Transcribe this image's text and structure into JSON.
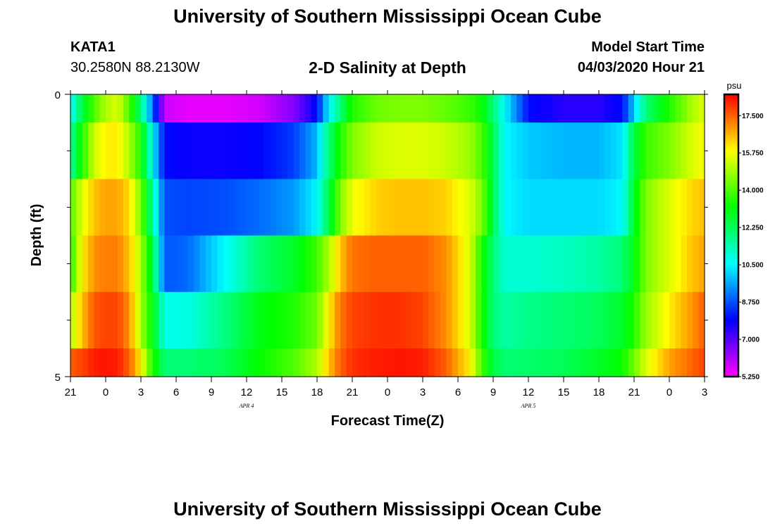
{
  "header": {
    "title": "University of Southern Mississippi Ocean Cube",
    "station_id": "KATA1",
    "station_coords": "30.2580N 88.2130W",
    "plot_title": "2-D Salinity at Depth",
    "model_start_label": "Model Start Time",
    "model_start_value": "04/03/2020 Hour 21"
  },
  "footer": {
    "title": "University of Southern Mississippi Ocean Cube"
  },
  "chart_data": {
    "type": "heatmap",
    "title": "2-D Salinity at Depth",
    "xlabel": "Forecast Time(Z)",
    "ylabel": "Depth (ft)",
    "x_tick_labels": [
      "21",
      "0",
      "3",
      "6",
      "9",
      "12",
      "15",
      "18",
      "21",
      "0",
      "3",
      "6",
      "9",
      "12",
      "15",
      "18",
      "21",
      "0",
      "3"
    ],
    "date_labels": [
      {
        "text": "APR 4",
        "at_hour": 15
      },
      {
        "text": "APR 5",
        "at_hour": 39
      }
    ],
    "y_tick_labels": [
      "0",
      "5"
    ],
    "ylim": [
      0,
      5
    ],
    "x_range_hours": [
      0,
      54
    ],
    "colorbar": {
      "unit": "psu",
      "range": [
        5.25,
        18.5
      ],
      "tick_labels": [
        "17.500",
        "15.750",
        "14.000",
        "12.250",
        "10.500",
        "8.750",
        "7.000",
        "5.250"
      ],
      "tick_values": [
        17.5,
        15.75,
        14.0,
        12.25,
        10.5,
        8.75,
        7.0,
        5.25
      ]
    },
    "depth_levels": [
      {
        "depth_range": [
          0.0,
          0.5
        ],
        "hours": [
          0,
          1,
          2,
          3,
          4,
          5,
          6,
          7,
          8,
          10,
          13,
          16,
          19,
          21,
          22,
          23,
          24,
          26,
          28,
          30,
          32,
          34,
          35,
          36,
          37,
          39,
          42,
          45,
          47,
          48,
          49,
          51,
          53,
          54
        ],
        "salinity": [
          10.5,
          12.5,
          14.0,
          15.0,
          15.5,
          14.0,
          12.0,
          9.0,
          5.8,
          5.5,
          5.5,
          5.7,
          6.5,
          8.0,
          10.5,
          12.0,
          13.5,
          14.3,
          14.5,
          14.5,
          14.2,
          13.8,
          13.3,
          12.0,
          10.5,
          8.0,
          7.5,
          7.5,
          8.0,
          10.0,
          12.0,
          13.5,
          15.0,
          15.5
        ]
      },
      {
        "depth_range": [
          0.5,
          1.5
        ],
        "hours": [
          0,
          1,
          2,
          3,
          4,
          5,
          6,
          7,
          8,
          10,
          13,
          16,
          19,
          21,
          22,
          23,
          24,
          26,
          28,
          30,
          32,
          34,
          35,
          36,
          37,
          39,
          42,
          45,
          47,
          48,
          49,
          51,
          53,
          54
        ],
        "salinity": [
          11.5,
          13.5,
          15.3,
          16.0,
          16.0,
          15.0,
          13.5,
          10.5,
          8.0,
          7.8,
          7.8,
          7.9,
          8.5,
          9.8,
          12.0,
          13.5,
          14.5,
          15.3,
          15.5,
          15.5,
          15.3,
          14.8,
          14.0,
          12.5,
          10.5,
          10.0,
          9.8,
          9.8,
          10.3,
          12.5,
          13.8,
          14.5,
          15.5,
          15.8
        ]
      },
      {
        "depth_range": [
          1.5,
          2.5
        ],
        "hours": [
          0,
          1,
          2,
          3,
          4,
          5,
          6,
          7,
          8,
          10,
          13,
          16,
          19,
          21,
          22,
          23,
          24,
          26,
          28,
          30,
          32,
          34,
          35,
          36,
          37,
          39,
          42,
          45,
          47,
          48,
          49,
          51,
          53,
          54
        ],
        "salinity": [
          14.0,
          15.5,
          16.5,
          16.8,
          16.8,
          16.2,
          14.5,
          11.5,
          8.7,
          8.6,
          8.7,
          9.0,
          9.5,
          10.5,
          12.5,
          14.5,
          15.7,
          16.3,
          16.5,
          16.5,
          16.3,
          15.5,
          14.5,
          12.5,
          10.5,
          10.2,
          10.2,
          10.2,
          10.5,
          12.8,
          14.5,
          15.5,
          16.3,
          16.5
        ]
      },
      {
        "depth_range": [
          2.5,
          3.5
        ],
        "hours": [
          0,
          1,
          2,
          3,
          4,
          5,
          6,
          7,
          8,
          10,
          13,
          16,
          19,
          21,
          22,
          23,
          24,
          26,
          28,
          30,
          32,
          34,
          35,
          36,
          37,
          39,
          42,
          45,
          47,
          48,
          49,
          51,
          53,
          54
        ],
        "salinity": [
          13.5,
          16.0,
          17.0,
          17.2,
          17.2,
          16.5,
          15.0,
          12.5,
          8.8,
          9.0,
          10.5,
          12.0,
          12.8,
          13.8,
          15.0,
          16.5,
          17.3,
          17.5,
          17.5,
          17.5,
          17.0,
          15.5,
          13.5,
          12.0,
          11.0,
          11.0,
          11.2,
          11.5,
          12.0,
          13.0,
          14.5,
          15.5,
          16.5,
          16.8
        ]
      },
      {
        "depth_range": [
          3.5,
          4.5
        ],
        "hours": [
          0,
          1,
          2,
          3,
          4,
          5,
          6,
          7,
          8,
          10,
          13,
          16,
          19,
          21,
          22,
          23,
          24,
          26,
          28,
          30,
          32,
          34,
          35,
          36,
          37,
          39,
          42,
          45,
          47,
          48,
          49,
          51,
          53,
          54
        ],
        "salinity": [
          15.0,
          16.5,
          17.6,
          17.8,
          17.8,
          17.0,
          15.0,
          13.0,
          10.8,
          10.8,
          11.8,
          13.0,
          13.5,
          14.3,
          16.0,
          17.3,
          17.8,
          18.0,
          18.0,
          17.8,
          17.0,
          15.5,
          13.5,
          12.0,
          11.5,
          11.8,
          12.0,
          12.3,
          12.8,
          13.5,
          14.8,
          16.0,
          17.0,
          17.5
        ]
      },
      {
        "depth_range": [
          4.5,
          5.0
        ],
        "hours": [
          0,
          1,
          2,
          3,
          4,
          5,
          6,
          7,
          8,
          10,
          13,
          16,
          19,
          21,
          22,
          23,
          24,
          26,
          28,
          30,
          32,
          34,
          35,
          36,
          37,
          39,
          42,
          45,
          47,
          48,
          49,
          51,
          53,
          54
        ],
        "salinity": [
          17.5,
          17.8,
          18.2,
          18.3,
          18.2,
          17.5,
          16.0,
          13.5,
          12.0,
          12.0,
          12.3,
          13.2,
          14.0,
          15.0,
          16.5,
          17.5,
          18.0,
          18.2,
          18.3,
          18.2,
          17.5,
          16.0,
          14.0,
          12.5,
          12.0,
          12.1,
          12.3,
          12.8,
          13.3,
          14.3,
          15.5,
          16.8,
          17.5,
          17.8
        ]
      }
    ]
  }
}
